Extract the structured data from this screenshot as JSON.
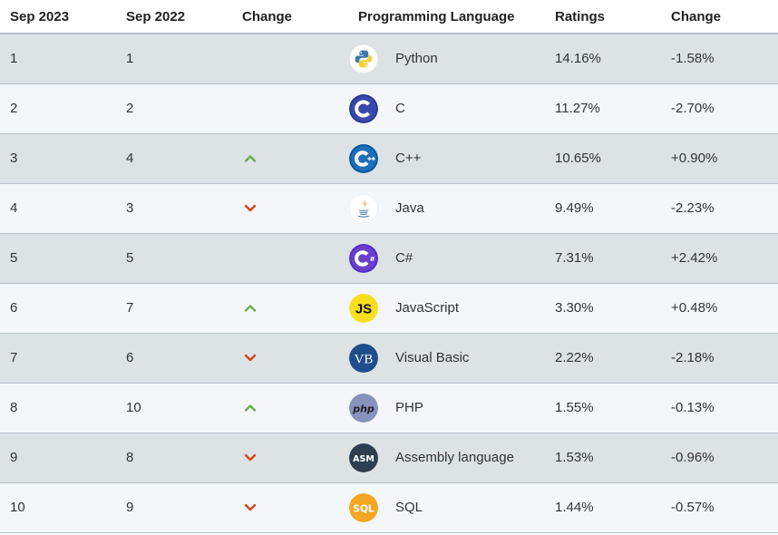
{
  "headers": {
    "current": "Sep 2023",
    "previous": "Sep 2022",
    "change": "Change",
    "language": "Programming Language",
    "ratings": "Ratings",
    "change2": "Change"
  },
  "colors": {
    "up": "#6ab04c",
    "down": "#d64618"
  },
  "rows": [
    {
      "current": "1",
      "previous": "1",
      "trend": "none",
      "icon": "python-logo-icon",
      "language": "Python",
      "ratings": "14.16%",
      "change": "-1.58%"
    },
    {
      "current": "2",
      "previous": "2",
      "trend": "none",
      "icon": "c-logo-icon",
      "language": "C",
      "ratings": "11.27%",
      "change": "-2.70%"
    },
    {
      "current": "3",
      "previous": "4",
      "trend": "up",
      "icon": "cpp-logo-icon",
      "language": "C++",
      "ratings": "10.65%",
      "change": "+0.90%"
    },
    {
      "current": "4",
      "previous": "3",
      "trend": "down",
      "icon": "java-logo-icon",
      "language": "Java",
      "ratings": "9.49%",
      "change": "-2.23%"
    },
    {
      "current": "5",
      "previous": "5",
      "trend": "none",
      "icon": "csharp-logo-icon",
      "language": "C#",
      "ratings": "7.31%",
      "change": "+2.42%"
    },
    {
      "current": "6",
      "previous": "7",
      "trend": "up",
      "icon": "javascript-logo-icon",
      "language": "JavaScript",
      "ratings": "3.30%",
      "change": "+0.48%"
    },
    {
      "current": "7",
      "previous": "6",
      "trend": "down",
      "icon": "visual-basic-logo-icon",
      "language": "Visual Basic",
      "ratings": "2.22%",
      "change": "-2.18%"
    },
    {
      "current": "8",
      "previous": "10",
      "trend": "up",
      "icon": "php-logo-icon",
      "language": "PHP",
      "ratings": "1.55%",
      "change": "-0.13%"
    },
    {
      "current": "9",
      "previous": "8",
      "trend": "down",
      "icon": "assembly-logo-icon",
      "language": "Assembly language",
      "ratings": "1.53%",
      "change": "-0.96%"
    },
    {
      "current": "10",
      "previous": "9",
      "trend": "down",
      "icon": "sql-logo-icon",
      "language": "SQL",
      "ratings": "1.44%",
      "change": "-0.57%"
    }
  ]
}
